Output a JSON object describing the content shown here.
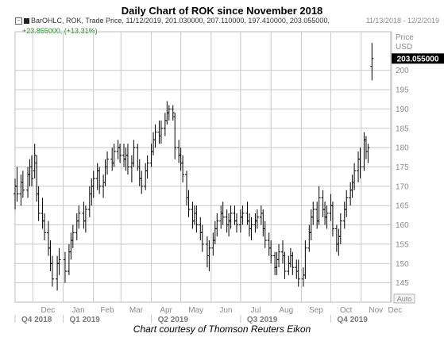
{
  "page_title": "Daily Chart of ROK since November 2018",
  "date_range": "11/13/2018 - 12/2/2019",
  "footer": "Chart courtesy of Thomson Reuters Eikon",
  "legend": {
    "line1": "BarOHLC, ROK, Trade Price, 11/12/2019, 201.030000, 207.110000, 197.410000, 203.055000,",
    "line2": "+23.855000, (+13.31%)"
  },
  "colors": {
    "bars": "#000000",
    "grid": "#c8c8c8",
    "change": "#1a8c1a",
    "axis_text": "#8a8a8a",
    "price_box": "#000000"
  },
  "icons": [
    "collapse-icon",
    "legend-color-swatch"
  ],
  "chart_data": {
    "type": "ohlc",
    "title": "Daily Chart of ROK since November 2018",
    "symbol": "ROK",
    "ylabel": "Price",
    "yunit": "USD",
    "ylim": [
      140,
      210
    ],
    "yticks": [
      145,
      150,
      155,
      160,
      165,
      170,
      175,
      180,
      185,
      190,
      195,
      200
    ],
    "last_price_label": "203.055000",
    "auto_label": "Auto",
    "grid": true,
    "month_labels": [
      "Dec",
      "Jan",
      "Feb",
      "Mar",
      "Apr",
      "May",
      "Jun",
      "Jul",
      "Aug",
      "Sep",
      "Oct",
      "Nov",
      "Dec"
    ],
    "quarter_labels": [
      "Q4 2018",
      "Q1 2019",
      "Q2 2019",
      "Q3 2019",
      "Q4 2019"
    ],
    "bars": [
      {
        "date": "2018-11-13",
        "o": 168,
        "h": 172,
        "l": 164,
        "c": 170
      },
      {
        "date": "2018-11-15",
        "o": 170,
        "h": 175,
        "l": 166,
        "c": 168
      },
      {
        "date": "2018-11-19",
        "o": 168,
        "h": 173,
        "l": 165,
        "c": 171
      },
      {
        "date": "2018-11-21",
        "o": 171,
        "h": 174,
        "l": 167,
        "c": 169
      },
      {
        "date": "2018-11-26",
        "o": 169,
        "h": 175,
        "l": 167,
        "c": 173
      },
      {
        "date": "2018-11-28",
        "o": 173,
        "h": 177,
        "l": 170,
        "c": 175
      },
      {
        "date": "2018-11-30",
        "o": 175,
        "h": 178,
        "l": 170,
        "c": 172
      },
      {
        "date": "2018-12-03",
        "o": 174,
        "h": 181,
        "l": 172,
        "c": 178
      },
      {
        "date": "2018-12-05",
        "o": 176,
        "h": 178,
        "l": 166,
        "c": 168
      },
      {
        "date": "2018-12-07",
        "o": 168,
        "h": 170,
        "l": 161,
        "c": 163
      },
      {
        "date": "2018-12-11",
        "o": 163,
        "h": 167,
        "l": 159,
        "c": 161
      },
      {
        "date": "2018-12-13",
        "o": 161,
        "h": 163,
        "l": 156,
        "c": 158
      },
      {
        "date": "2018-12-17",
        "o": 158,
        "h": 161,
        "l": 152,
        "c": 154
      },
      {
        "date": "2018-12-19",
        "o": 154,
        "h": 156,
        "l": 148,
        "c": 150
      },
      {
        "date": "2018-12-21",
        "o": 150,
        "h": 152,
        "l": 144,
        "c": 146
      },
      {
        "date": "2018-12-26",
        "o": 146,
        "h": 152,
        "l": 143,
        "c": 150
      },
      {
        "date": "2018-12-28",
        "o": 150,
        "h": 154,
        "l": 147,
        "c": 151
      },
      {
        "date": "2019-01-03",
        "o": 151,
        "h": 153,
        "l": 145,
        "c": 148
      },
      {
        "date": "2019-01-07",
        "o": 148,
        "h": 155,
        "l": 147,
        "c": 153
      },
      {
        "date": "2019-01-09",
        "o": 153,
        "h": 158,
        "l": 151,
        "c": 156
      },
      {
        "date": "2019-01-11",
        "o": 156,
        "h": 160,
        "l": 154,
        "c": 158
      },
      {
        "date": "2019-01-15",
        "o": 158,
        "h": 163,
        "l": 156,
        "c": 161
      },
      {
        "date": "2019-01-17",
        "o": 161,
        "h": 165,
        "l": 159,
        "c": 163
      },
      {
        "date": "2019-01-22",
        "o": 163,
        "h": 166,
        "l": 159,
        "c": 161
      },
      {
        "date": "2019-01-24",
        "o": 161,
        "h": 165,
        "l": 158,
        "c": 164
      },
      {
        "date": "2019-01-28",
        "o": 164,
        "h": 170,
        "l": 162,
        "c": 168
      },
      {
        "date": "2019-01-30",
        "o": 168,
        "h": 172,
        "l": 165,
        "c": 170
      },
      {
        "date": "2019-02-01",
        "o": 170,
        "h": 174,
        "l": 167,
        "c": 172
      },
      {
        "date": "2019-02-05",
        "o": 172,
        "h": 176,
        "l": 169,
        "c": 174
      },
      {
        "date": "2019-02-07",
        "o": 174,
        "h": 175,
        "l": 168,
        "c": 170
      },
      {
        "date": "2019-02-11",
        "o": 170,
        "h": 173,
        "l": 167,
        "c": 171
      },
      {
        "date": "2019-02-13",
        "o": 171,
        "h": 177,
        "l": 170,
        "c": 175
      },
      {
        "date": "2019-02-15",
        "o": 175,
        "h": 179,
        "l": 173,
        "c": 177
      },
      {
        "date": "2019-02-20",
        "o": 177,
        "h": 180,
        "l": 174,
        "c": 176
      },
      {
        "date": "2019-02-22",
        "o": 176,
        "h": 181,
        "l": 175,
        "c": 179
      },
      {
        "date": "2019-02-26",
        "o": 179,
        "h": 182,
        "l": 177,
        "c": 180
      },
      {
        "date": "2019-02-28",
        "o": 180,
        "h": 181,
        "l": 176,
        "c": 178
      },
      {
        "date": "2019-03-04",
        "o": 178,
        "h": 181,
        "l": 175,
        "c": 177
      },
      {
        "date": "2019-03-06",
        "o": 177,
        "h": 180,
        "l": 174,
        "c": 178
      },
      {
        "date": "2019-03-08",
        "o": 178,
        "h": 181,
        "l": 173,
        "c": 175
      },
      {
        "date": "2019-03-12",
        "o": 175,
        "h": 178,
        "l": 171,
        "c": 176
      },
      {
        "date": "2019-03-14",
        "o": 176,
        "h": 182,
        "l": 175,
        "c": 180
      },
      {
        "date": "2019-03-18",
        "o": 180,
        "h": 181,
        "l": 174,
        "c": 175
      },
      {
        "date": "2019-03-20",
        "o": 175,
        "h": 177,
        "l": 170,
        "c": 172
      },
      {
        "date": "2019-03-22",
        "o": 172,
        "h": 174,
        "l": 168,
        "c": 170
      },
      {
        "date": "2019-03-26",
        "o": 170,
        "h": 176,
        "l": 169,
        "c": 174
      },
      {
        "date": "2019-03-28",
        "o": 174,
        "h": 178,
        "l": 172,
        "c": 176
      },
      {
        "date": "2019-04-01",
        "o": 176,
        "h": 181,
        "l": 175,
        "c": 179
      },
      {
        "date": "2019-04-03",
        "o": 179,
        "h": 184,
        "l": 178,
        "c": 182
      },
      {
        "date": "2019-04-05",
        "o": 182,
        "h": 186,
        "l": 180,
        "c": 184
      },
      {
        "date": "2019-04-09",
        "o": 184,
        "h": 187,
        "l": 181,
        "c": 183
      },
      {
        "date": "2019-04-11",
        "o": 183,
        "h": 187,
        "l": 181,
        "c": 185
      },
      {
        "date": "2019-04-15",
        "o": 185,
        "h": 189,
        "l": 183,
        "c": 187
      },
      {
        "date": "2019-04-17",
        "o": 187,
        "h": 192,
        "l": 186,
        "c": 189
      },
      {
        "date": "2019-04-19",
        "o": 189,
        "h": 191,
        "l": 187,
        "c": 190
      },
      {
        "date": "2019-04-23",
        "o": 190,
        "h": 191,
        "l": 187,
        "c": 189
      },
      {
        "date": "2019-04-25",
        "o": 188,
        "h": 189,
        "l": 177,
        "c": 180
      },
      {
        "date": "2019-04-29",
        "o": 180,
        "h": 182,
        "l": 176,
        "c": 178
      },
      {
        "date": "2019-05-01",
        "o": 178,
        "h": 180,
        "l": 174,
        "c": 176
      },
      {
        "date": "2019-05-03",
        "o": 176,
        "h": 178,
        "l": 171,
        "c": 173
      },
      {
        "date": "2019-05-07",
        "o": 173,
        "h": 174,
        "l": 165,
        "c": 167
      },
      {
        "date": "2019-05-09",
        "o": 167,
        "h": 169,
        "l": 162,
        "c": 164
      },
      {
        "date": "2019-05-13",
        "o": 164,
        "h": 166,
        "l": 159,
        "c": 161
      },
      {
        "date": "2019-05-15",
        "o": 161,
        "h": 165,
        "l": 160,
        "c": 163
      },
      {
        "date": "2019-05-17",
        "o": 163,
        "h": 165,
        "l": 158,
        "c": 160
      },
      {
        "date": "2019-05-21",
        "o": 160,
        "h": 162,
        "l": 156,
        "c": 158
      },
      {
        "date": "2019-05-23",
        "o": 158,
        "h": 160,
        "l": 153,
        "c": 155
      },
      {
        "date": "2019-05-28",
        "o": 155,
        "h": 157,
        "l": 149,
        "c": 152
      },
      {
        "date": "2019-05-30",
        "o": 152,
        "h": 156,
        "l": 148,
        "c": 154
      },
      {
        "date": "2019-06-03",
        "o": 154,
        "h": 158,
        "l": 152,
        "c": 156
      },
      {
        "date": "2019-06-05",
        "o": 156,
        "h": 161,
        "l": 155,
        "c": 159
      },
      {
        "date": "2019-06-07",
        "o": 159,
        "h": 163,
        "l": 157,
        "c": 161
      },
      {
        "date": "2019-06-11",
        "o": 161,
        "h": 165,
        "l": 159,
        "c": 163
      },
      {
        "date": "2019-06-13",
        "o": 163,
        "h": 166,
        "l": 160,
        "c": 162
      },
      {
        "date": "2019-06-17",
        "o": 162,
        "h": 164,
        "l": 158,
        "c": 160
      },
      {
        "date": "2019-06-19",
        "o": 160,
        "h": 163,
        "l": 157,
        "c": 161
      },
      {
        "date": "2019-06-21",
        "o": 161,
        "h": 165,
        "l": 159,
        "c": 163
      },
      {
        "date": "2019-06-25",
        "o": 163,
        "h": 165,
        "l": 160,
        "c": 161
      },
      {
        "date": "2019-06-27",
        "o": 161,
        "h": 163,
        "l": 158,
        "c": 160
      },
      {
        "date": "2019-07-01",
        "o": 160,
        "h": 164,
        "l": 158,
        "c": 162
      },
      {
        "date": "2019-07-03",
        "o": 162,
        "h": 165,
        "l": 160,
        "c": 163
      },
      {
        "date": "2019-07-08",
        "o": 163,
        "h": 166,
        "l": 160,
        "c": 161
      },
      {
        "date": "2019-07-10",
        "o": 161,
        "h": 163,
        "l": 157,
        "c": 159
      },
      {
        "date": "2019-07-12",
        "o": 159,
        "h": 162,
        "l": 156,
        "c": 160
      },
      {
        "date": "2019-07-16",
        "o": 160,
        "h": 163,
        "l": 158,
        "c": 161
      },
      {
        "date": "2019-07-18",
        "o": 161,
        "h": 164,
        "l": 159,
        "c": 162
      },
      {
        "date": "2019-07-22",
        "o": 162,
        "h": 165,
        "l": 160,
        "c": 163
      },
      {
        "date": "2019-07-24",
        "o": 163,
        "h": 164,
        "l": 157,
        "c": 159
      },
      {
        "date": "2019-07-26",
        "o": 159,
        "h": 161,
        "l": 154,
        "c": 156
      },
      {
        "date": "2019-07-30",
        "o": 156,
        "h": 158,
        "l": 152,
        "c": 154
      },
      {
        "date": "2019-08-01",
        "o": 154,
        "h": 156,
        "l": 150,
        "c": 152
      },
      {
        "date": "2019-08-05",
        "o": 152,
        "h": 153,
        "l": 147,
        "c": 149
      },
      {
        "date": "2019-08-07",
        "o": 149,
        "h": 153,
        "l": 147,
        "c": 151
      },
      {
        "date": "2019-08-09",
        "o": 151,
        "h": 155,
        "l": 149,
        "c": 153
      },
      {
        "date": "2019-08-13",
        "o": 153,
        "h": 156,
        "l": 150,
        "c": 152
      },
      {
        "date": "2019-08-15",
        "o": 152,
        "h": 153,
        "l": 146,
        "c": 148
      },
      {
        "date": "2019-08-19",
        "o": 148,
        "h": 152,
        "l": 147,
        "c": 150
      },
      {
        "date": "2019-08-21",
        "o": 150,
        "h": 154,
        "l": 149,
        "c": 152
      },
      {
        "date": "2019-08-23",
        "o": 152,
        "h": 153,
        "l": 147,
        "c": 149
      },
      {
        "date": "2019-08-27",
        "o": 149,
        "h": 151,
        "l": 146,
        "c": 148
      },
      {
        "date": "2019-08-29",
        "o": 148,
        "h": 151,
        "l": 144,
        "c": 146
      },
      {
        "date": "2019-09-03",
        "o": 146,
        "h": 149,
        "l": 144,
        "c": 147
      },
      {
        "date": "2019-09-05",
        "o": 147,
        "h": 156,
        "l": 146,
        "c": 154
      },
      {
        "date": "2019-09-09",
        "o": 154,
        "h": 160,
        "l": 153,
        "c": 158
      },
      {
        "date": "2019-09-11",
        "o": 158,
        "h": 164,
        "l": 156,
        "c": 162
      },
      {
        "date": "2019-09-13",
        "o": 162,
        "h": 166,
        "l": 160,
        "c": 164
      },
      {
        "date": "2019-09-17",
        "o": 164,
        "h": 166,
        "l": 159,
        "c": 161
      },
      {
        "date": "2019-09-19",
        "o": 161,
        "h": 170,
        "l": 160,
        "c": 167
      },
      {
        "date": "2019-09-23",
        "o": 167,
        "h": 169,
        "l": 162,
        "c": 164
      },
      {
        "date": "2019-09-25",
        "o": 164,
        "h": 166,
        "l": 160,
        "c": 162
      },
      {
        "date": "2019-09-27",
        "o": 162,
        "h": 165,
        "l": 159,
        "c": 163
      },
      {
        "date": "2019-10-01",
        "o": 163,
        "h": 168,
        "l": 161,
        "c": 165
      },
      {
        "date": "2019-10-03",
        "o": 165,
        "h": 166,
        "l": 157,
        "c": 159
      },
      {
        "date": "2019-10-07",
        "o": 159,
        "h": 160,
        "l": 153,
        "c": 155
      },
      {
        "date": "2019-10-09",
        "o": 155,
        "h": 159,
        "l": 152,
        "c": 157
      },
      {
        "date": "2019-10-11",
        "o": 157,
        "h": 163,
        "l": 155,
        "c": 161
      },
      {
        "date": "2019-10-15",
        "o": 161,
        "h": 166,
        "l": 159,
        "c": 164
      },
      {
        "date": "2019-10-17",
        "o": 164,
        "h": 169,
        "l": 162,
        "c": 167
      },
      {
        "date": "2019-10-21",
        "o": 167,
        "h": 171,
        "l": 165,
        "c": 169
      },
      {
        "date": "2019-10-23",
        "o": 169,
        "h": 173,
        "l": 167,
        "c": 171
      },
      {
        "date": "2019-10-25",
        "o": 171,
        "h": 176,
        "l": 169,
        "c": 174
      },
      {
        "date": "2019-10-29",
        "o": 174,
        "h": 179,
        "l": 171,
        "c": 177
      },
      {
        "date": "2019-10-31",
        "o": 177,
        "h": 180,
        "l": 172,
        "c": 175
      },
      {
        "date": "2019-11-04",
        "o": 175,
        "h": 184,
        "l": 174,
        "c": 182
      },
      {
        "date": "2019-11-06",
        "o": 182,
        "h": 183,
        "l": 177,
        "c": 179
      },
      {
        "date": "2019-11-08",
        "o": 179,
        "h": 181,
        "l": 176,
        "c": 180
      },
      {
        "date": "2019-11-12",
        "o": 201.03,
        "h": 207.11,
        "l": 197.41,
        "c": 203.055
      }
    ]
  }
}
